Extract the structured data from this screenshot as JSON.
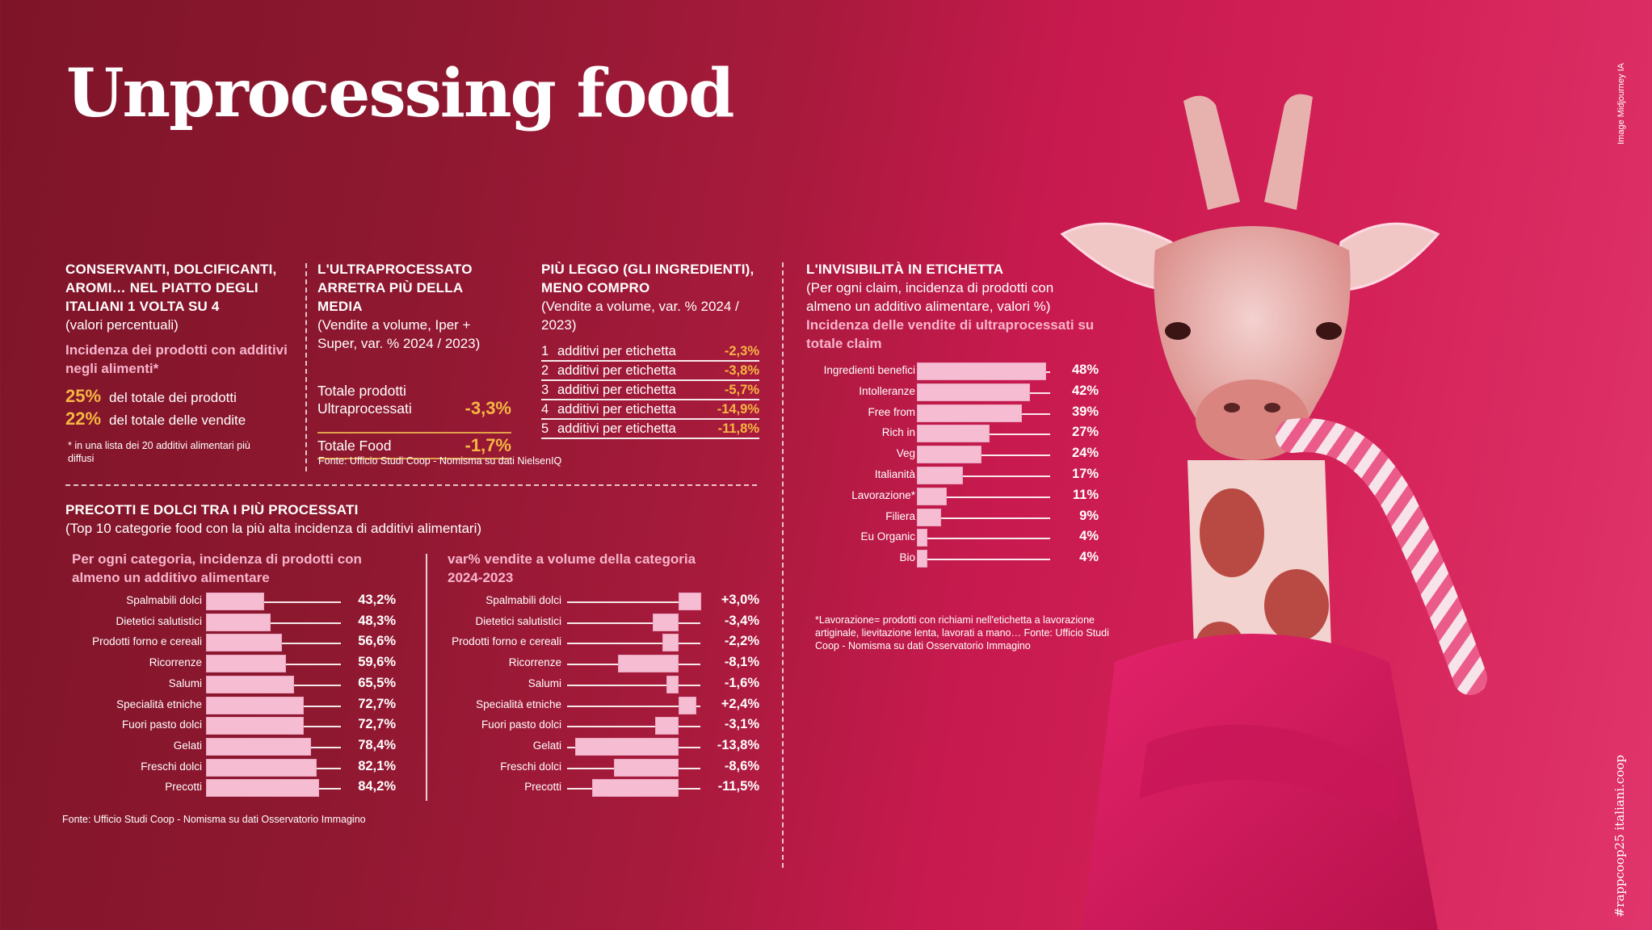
{
  "title": "Unprocessing food",
  "credit": "Image Midjourney IA",
  "hashtag": "#rappcoop25 italiani.coop",
  "colors": {
    "accent_gold": "#f5b642",
    "bar_pink": "#f6bcd2",
    "subheading_pink": "#f7b5cc",
    "bg_dark": "#7e1428",
    "bg_bright": "#e0356c"
  },
  "section1": {
    "heading": "CONSERVANTI, DOLCIFICANTI, AROMI… NEL PIATTO DEGLI ITALIANI 1 VOLTA SU 4",
    "subheading": "(valori percentuali)",
    "pink_heading": "Incidenza dei prodotti con additivi negli alimenti*",
    "stats": [
      {
        "value": "25%",
        "label": "del totale dei prodotti"
      },
      {
        "value": "22%",
        "label": "del totale delle vendite"
      }
    ],
    "footnote": "* in una lista dei 20 additivi alimentari più diffusi"
  },
  "section2": {
    "heading": "L'ULTRAPROCESSATO ARRETRA PIÙ DELLA MEDIA",
    "subheading": "(Vendite a volume, Iper + Super,  var. % 2024 / 2023)",
    "rows": [
      {
        "label": "Totale prodotti Ultraprocessati",
        "value": "-3,3%"
      },
      {
        "label": "Totale Food",
        "value": "-1,7%"
      }
    ]
  },
  "section3": {
    "heading": "PIÙ LEGGO (GLI INGREDIENTI), MENO COMPRO",
    "subheading": "(Vendite a volume, var. % 2024 / 2023)",
    "rows": [
      {
        "n": "1",
        "label": "additivi per etichetta",
        "value": "-2,3%"
      },
      {
        "n": "2",
        "label": "additivi per etichetta",
        "value": "-3,8%"
      },
      {
        "n": "3",
        "label": "additivi per etichetta",
        "value": "-5,7%"
      },
      {
        "n": "4",
        "label": "additivi per etichetta",
        "value": "-14,9%"
      },
      {
        "n": "5",
        "label": "additivi per etichetta",
        "value": "-11,8%"
      }
    ]
  },
  "source_top": "Fonte: Ufficio Studi Coop - Nomisma su dati NielsenIQ",
  "section4": {
    "heading": "L'INVISIBILITÀ IN ETICHETTA",
    "subheading": "(Per ogni claim, incidenza di prodotti con almeno un additivo alimentare, valori %)",
    "pink_heading": "Incidenza delle vendite di ultraprocessati su totale claim",
    "footnote": "*Lavorazione= prodotti con richiami nell'etichetta a lavorazione artiginale, lievitazione lenta, lavorati a mano… Fonte: Ufficio Studi Coop - Nomisma su dati Osservatorio Immagino"
  },
  "section5": {
    "heading": "PRECOTTI E DOLCI TRA I PIÙ PROCESSATI",
    "subheading": "(Top 10 categorie food con la più alta incidenza di additivi alimentari)",
    "left_heading": "Per ogni categoria, incidenza di prodotti con almeno un additivo alimentare",
    "right_heading": "var% vendite a volume della categoria 2024-2023",
    "source": "Fonte: Ufficio Studi Coop - Nomisma su dati Osservatorio Immagino"
  },
  "chart_data": [
    {
      "type": "bar",
      "orientation": "horizontal",
      "title": "Incidenza delle vendite di ultraprocessati su totale claim",
      "categories": [
        "Ingredienti benefici",
        "Intolleranze",
        "Free from",
        "Rich in",
        "Veg",
        "Italianità",
        "Lavorazione*",
        "Filiera",
        "Eu Organic",
        "Bio"
      ],
      "values": [
        48,
        42,
        39,
        27,
        24,
        17,
        11,
        9,
        4,
        4
      ],
      "labels": [
        "48%",
        "42%",
        "39%",
        "27%",
        "24%",
        "17%",
        "11%",
        "9%",
        "4%",
        "4%"
      ],
      "unit": "%",
      "xlim": [
        0,
        48
      ]
    },
    {
      "type": "bar",
      "orientation": "horizontal",
      "title": "Per ogni categoria, incidenza di prodotti con almeno un additivo alimentare",
      "categories": [
        "Spalmabili dolci",
        "Dietetici salutistici",
        "Prodotti forno e cereali",
        "Ricorrenze",
        "Salumi",
        "Specialità etniche",
        "Fuori pasto dolci",
        "Gelati",
        "Freschi dolci",
        "Precotti"
      ],
      "values": [
        43.2,
        48.3,
        56.6,
        59.6,
        65.5,
        72.7,
        72.7,
        78.4,
        82.1,
        84.2
      ],
      "labels": [
        "43,2%",
        "48,3%",
        "56,6%",
        "59,6%",
        "65,5%",
        "72,7%",
        "72,7%",
        "78,4%",
        "82,1%",
        "84,2%"
      ],
      "unit": "%",
      "xlim": [
        0,
        84.2
      ]
    },
    {
      "type": "bar",
      "orientation": "horizontal",
      "diverging": true,
      "title": "var% vendite a volume della categoria 2024-2023",
      "categories": [
        "Spalmabili dolci",
        "Dietetici salutistici",
        "Prodotti forno e cereali",
        "Ricorrenze",
        "Salumi",
        "Specialità etniche",
        "Fuori pasto dolci",
        "Gelati",
        "Freschi dolci",
        "Precotti"
      ],
      "values": [
        3.0,
        -3.4,
        -2.2,
        -8.1,
        -1.6,
        2.4,
        -3.1,
        -13.8,
        -8.6,
        -11.5
      ],
      "labels": [
        "+3,0%",
        "-3,4%",
        "-2,2%",
        "-8,1%",
        "-1,6%",
        "+2,4%",
        "-3,1%",
        "-13,8%",
        "-8,6%",
        "-11,5%"
      ],
      "unit": "%",
      "xlim": [
        -13.8,
        3.0
      ]
    }
  ]
}
